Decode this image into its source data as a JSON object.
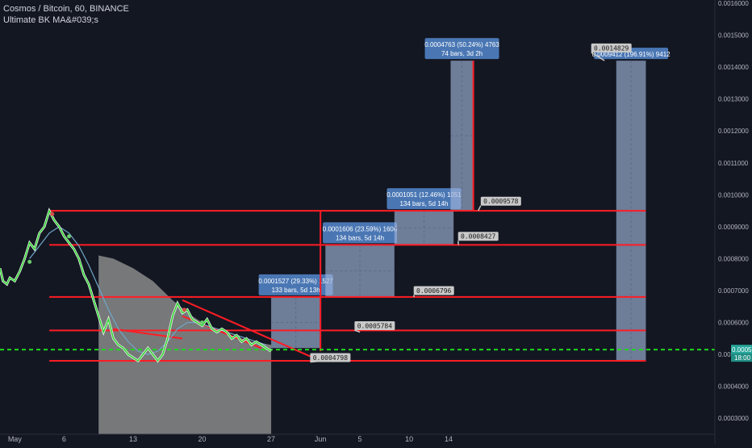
{
  "header": {
    "title": "Cosmos / Bitcoin, 60, BINANCE",
    "indicator": "Ultimate BK MA&#039;s"
  },
  "colors": {
    "background": "#131722",
    "axis_text": "#b2b5be",
    "red_line": "#ff1c24",
    "green_line": "#2bd12b",
    "dashed_line": "#1ed81e",
    "box_fill": "#9fb4d8",
    "label_fill": "#4a77b4",
    "callout_fill": "#c9c9c9",
    "volume_profile": "#8a8a8a",
    "price_label": "#26a69a"
  },
  "chart_data": {
    "type": "line",
    "title": "Cosmos / Bitcoin, 60, BINANCE",
    "xlabel": "",
    "ylabel": "",
    "ylim": [
      0.00025,
      0.00161
    ],
    "y_ticks": [
      "0.0016000",
      "0.0015000",
      "0.0014000",
      "0.0013000",
      "0.0012000",
      "0.0011000",
      "0.0010000",
      "0.0009000",
      "0.0008000",
      "0.0007000",
      "0.0006000",
      "0.0005000",
      "0.0004000",
      "0.0003000"
    ],
    "x_ticks": [
      {
        "label": "May",
        "day": 0
      },
      {
        "label": "6",
        "day": 5
      },
      {
        "label": "13",
        "day": 12
      },
      {
        "label": "20",
        "day": 19
      },
      {
        "label": "27",
        "day": 26
      },
      {
        "label": "Jun",
        "day": 31
      },
      {
        "label": "5",
        "day": 35
      },
      {
        "label": "10",
        "day": 40
      },
      {
        "label": "14",
        "day": 44
      }
    ],
    "xlim": [
      -1.5,
      71
    ],
    "price_series": {
      "name": "ATOM/BTC",
      "x": [
        -1.5,
        -1.2,
        -0.8,
        -0.5,
        0,
        0.5,
        1,
        1.5,
        2,
        2.5,
        3,
        3.5,
        4,
        4.5,
        5,
        5.5,
        6,
        6.5,
        7,
        7.5,
        8,
        8.5,
        9,
        9.5,
        10,
        10.5,
        11,
        11.5,
        12,
        12.5,
        13,
        13.5,
        14,
        14.5,
        15,
        15.5,
        16,
        16.5,
        17,
        17.5,
        18,
        18.5,
        19,
        19.5,
        20,
        20.5,
        21,
        21.5,
        22,
        22.5,
        23,
        23.5,
        24,
        24.5,
        25,
        25.5,
        26
      ],
      "y": [
        0.00077,
        0.00073,
        0.00072,
        0.00074,
        0.00073,
        0.00076,
        0.0008,
        0.00085,
        0.00083,
        0.00088,
        0.0009,
        0.00095,
        0.00092,
        0.0009,
        0.00087,
        0.00085,
        0.00083,
        0.0008,
        0.00075,
        0.00072,
        0.00067,
        0.00062,
        0.00057,
        0.00061,
        0.00055,
        0.00053,
        0.00052,
        0.0005,
        0.00049,
        0.00048,
        0.0005,
        0.00052,
        0.0005,
        0.00048,
        0.0005,
        0.00055,
        0.00062,
        0.00066,
        0.00063,
        0.00064,
        0.00061,
        0.0006,
        0.00059,
        0.00061,
        0.00058,
        0.00057,
        0.00058,
        0.00057,
        0.00055,
        0.00056,
        0.00054,
        0.00055,
        0.00053,
        0.00054,
        0.00053,
        0.00052,
        0.00051
      ]
    },
    "ma_series": {
      "name": "MA",
      "x": [
        1.5,
        2.5,
        3.5,
        4.5,
        5.5,
        6.5,
        7.5,
        8.5,
        9.5,
        10.5,
        11.5,
        12.5,
        13.5,
        14.5,
        15.5,
        16.5,
        17.5,
        18.5,
        19.5,
        20.5,
        21.5,
        22.5,
        23.5,
        24.5,
        25.5
      ],
      "y": [
        0.0008,
        0.00084,
        0.00088,
        0.0009,
        0.00088,
        0.00084,
        0.00078,
        0.00071,
        0.00064,
        0.00058,
        0.00054,
        0.00051,
        0.0005,
        0.00051,
        0.00054,
        0.00058,
        0.0006,
        0.0006,
        0.00059,
        0.00058,
        0.00057,
        0.00056,
        0.00055,
        0.00054,
        0.00053
      ]
    },
    "volume_profile": {
      "x_start": 8.5,
      "x_end": 26,
      "top_edge": [
        {
          "x": 8.5,
          "y": 0.00081
        },
        {
          "x": 10,
          "y": 0.0008
        },
        {
          "x": 12,
          "y": 0.00077
        },
        {
          "x": 14,
          "y": 0.00073
        },
        {
          "x": 16,
          "y": 0.00067
        },
        {
          "x": 18,
          "y": 0.00062
        },
        {
          "x": 20,
          "y": 0.00058
        },
        {
          "x": 22,
          "y": 0.00056
        },
        {
          "x": 24,
          "y": 0.00054
        },
        {
          "x": 26,
          "y": 0.00053
        }
      ]
    },
    "current_price": {
      "value": "0.0005150",
      "time": "18:00",
      "level": 0.000515
    },
    "horizontal_levels": [
      {
        "x1": 3.5,
        "x2": 64,
        "y": 0.00095
      },
      {
        "x1": 3.5,
        "x2": 64,
        "y": 0.000843
      },
      {
        "x1": 3.5,
        "x2": 64,
        "y": 0.00068
      },
      {
        "x1": 3.5,
        "x2": 64,
        "y": 0.000575
      },
      {
        "x1": 3.5,
        "x2": 64,
        "y": 0.00048
      }
    ],
    "trend_lines": [
      {
        "x1": 17.0,
        "y1": 0.00067,
        "x2": 31.0,
        "y2": 0.00048
      },
      {
        "x1": 17.0,
        "y1": 0.00062,
        "x2": 25.0,
        "y2": 0.00052
      },
      {
        "x1": 10.0,
        "y1": 0.00058,
        "x2": 17.0,
        "y2": 0.00055
      }
    ],
    "vertical_lines": [
      {
        "x": 31.0,
        "y1": 0.00051,
        "y2": 0.00095
      },
      {
        "x": 46.5,
        "y1": 0.00095,
        "y2": 0.00142
      }
    ],
    "measure_boxes": [
      {
        "x1": 26,
        "x2": 31,
        "y1": 0.00052,
        "y2": 0.00068,
        "line1": "0.0001527 (29.33%) 1527",
        "line2": "133 bars, 5d 13h"
      },
      {
        "x1": 31.5,
        "x2": 38.5,
        "y1": 0.00068,
        "y2": 0.000843,
        "line1": "0.0001606 (23.59%) 1606",
        "line2": "134 bars, 5d 14h"
      },
      {
        "x1": 38.5,
        "x2": 44.5,
        "y1": 0.000843,
        "y2": 0.00095,
        "line1": "0.0001051 (12.46%) 1051",
        "line2": "134 bars, 5d 14h"
      },
      {
        "x1": 44.2,
        "x2": 46.5,
        "y1": 0.00095,
        "y2": 0.00142,
        "line1": "0.0004763 (50.24%) 4763",
        "line2": "74 bars, 3d 2h"
      },
      {
        "x1": 61,
        "x2": 64,
        "y1": 0.00048,
        "y2": 0.00142,
        "line1": "0.0009412 (196.91%) 9412",
        "line2": ""
      }
    ],
    "callouts": [
      {
        "text": "0.0004798",
        "x": 32,
        "y": 0.00049,
        "ax": 31.5,
        "ay": 0.00048
      },
      {
        "text": "0.0005784",
        "x": 36.5,
        "y": 0.00059,
        "ax": 35,
        "ay": 0.00057
      },
      {
        "text": "0.0006796",
        "x": 42.5,
        "y": 0.0007,
        "ax": 40.5,
        "ay": 0.00068
      },
      {
        "text": "0.0008427",
        "x": 47,
        "y": 0.00087,
        "ax": 45,
        "ay": 0.000843
      },
      {
        "text": "0.0009578",
        "x": 49.3,
        "y": 0.00098,
        "ax": 47,
        "ay": 0.00095
      },
      {
        "text": "0.0014829",
        "x": 60.5,
        "y": 0.00146,
        "ax": 59.8,
        "ay": 0.00142
      }
    ],
    "markers": [
      {
        "x": 1.5,
        "y": 0.00079
      },
      {
        "x": 3.8,
        "y": 0.00094
      },
      {
        "x": 5.5,
        "y": 0.00087
      },
      {
        "x": 17.2,
        "y": 0.00064
      },
      {
        "x": 19.0,
        "y": 0.0006
      }
    ],
    "grid": false,
    "legend": "none"
  }
}
